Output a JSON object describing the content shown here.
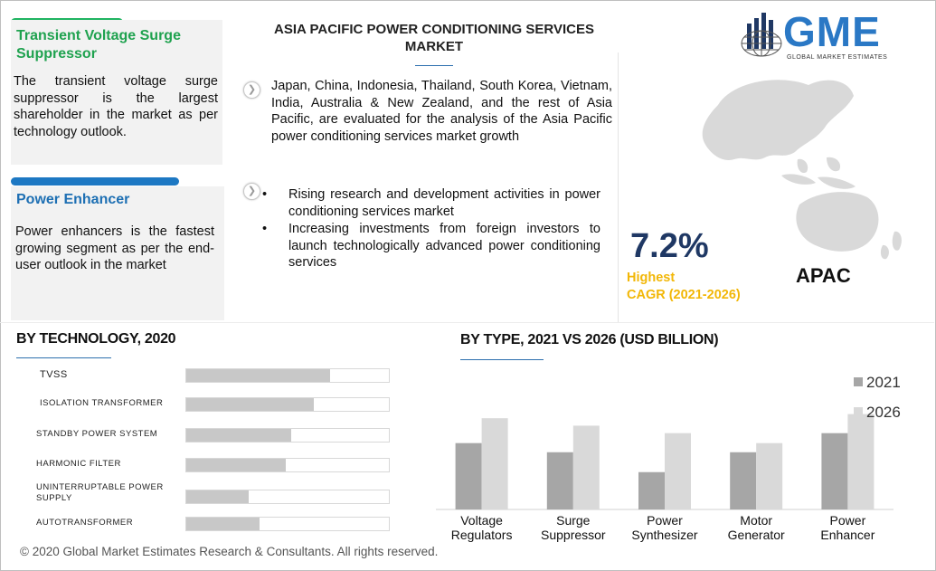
{
  "left_panels": [
    {
      "title": "Transient Voltage Surge Suppressor",
      "text": "The transient voltage surge suppressor is the largest shareholder in the market as per technology outlook."
    },
    {
      "title": "Power Enhancer",
      "text": "Power enhancers is the fastest growing segment as per the end-user outlook in the market"
    }
  ],
  "center": {
    "title": "ASIA PACIFIC POWER CONDITIONING SERVICES MARKET",
    "paragraph": "Japan, China, Indonesia, Thailand, South Korea, Vietnam, India, Australia & New Zealand, and the rest of Asia Pacific, are evaluated for the analysis of the Asia Pacific power conditioning services market growth",
    "bullets": [
      "Rising research and development activities in power conditioning services market",
      "Increasing investments from foreign investors to launch technologically advanced power conditioning services"
    ]
  },
  "logo": {
    "name": "GME",
    "tagline": "GLOBAL MARKET ESTIMATES"
  },
  "summary": {
    "cagr": "7.2%",
    "cagr_label_1": "Highest",
    "cagr_label_2": "CAGR (2021-2026)",
    "region": "APAC"
  },
  "chart_data": [
    {
      "type": "bar",
      "orientation": "horizontal",
      "title": "BY TECHNOLOGY, 2020",
      "categories": [
        "TVSS",
        "ISOLATION TRANSFORMER",
        "STANDBY POWER SYSTEM",
        "HARMONIC FILTER",
        "UNINTERRUPTABLE POWER SUPPLY",
        "AUTOTRANSFORMER"
      ],
      "values": [
        71,
        63,
        52,
        49,
        31,
        36
      ],
      "xlim": [
        0,
        100
      ],
      "colors": {
        "fill": "#c8c8c8",
        "track": "#ffffff"
      }
    },
    {
      "type": "bar",
      "title": "BY TYPE,  2021 VS 2026 (USD BILLION)",
      "categories": [
        "Voltage Regulators",
        "Surge Suppressor",
        "Power Synthesizer",
        "Motor Generator",
        "Power Enhancer"
      ],
      "series": [
        {
          "name": "2021",
          "values": [
            0.8,
            0.69,
            0.45,
            0.69,
            0.92
          ],
          "color": "#a6a6a6"
        },
        {
          "name": "2026",
          "values": [
            1.1,
            1.01,
            0.92,
            0.8,
            1.15
          ],
          "color": "#d9d9d9"
        }
      ],
      "ylim": [
        0,
        1.2
      ],
      "legend": "top-right",
      "grid": false
    }
  ],
  "footer": {
    "copyright": "© 2020 Global Market Estimates Research & Consultants. All rights reserved."
  }
}
